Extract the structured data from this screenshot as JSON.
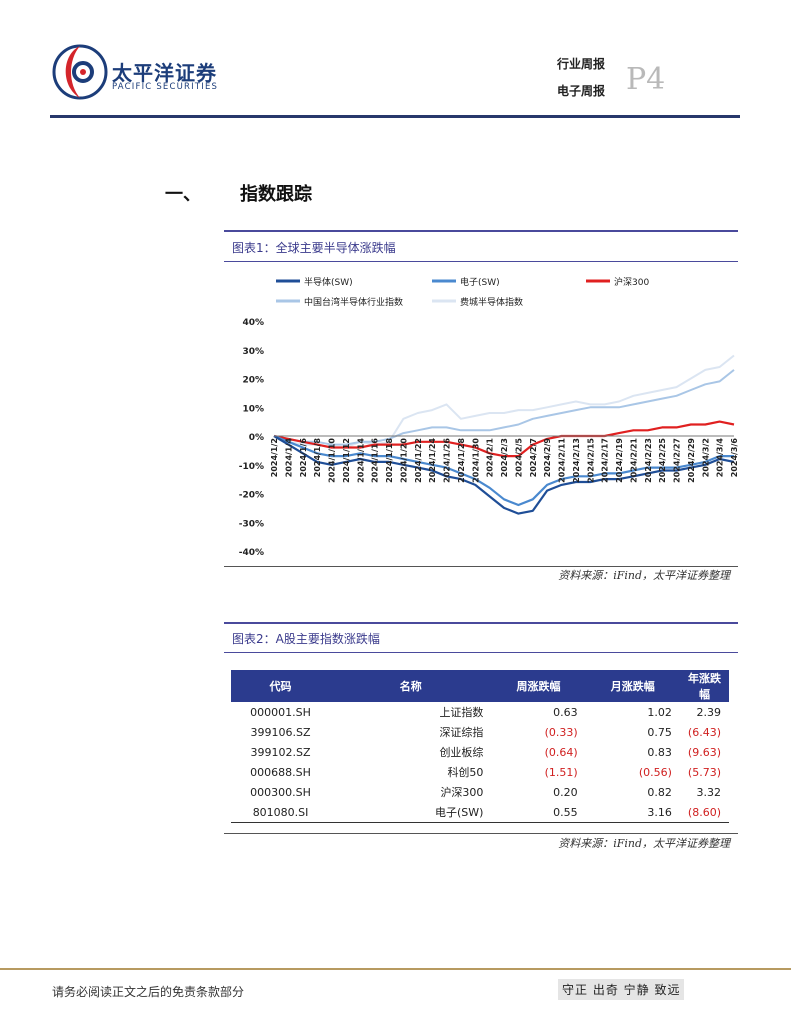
{
  "header": {
    "company_cn": "太平洋证券",
    "company_en": "PACIFIC SECURITIES",
    "report_type": "行业周报",
    "report_sub": "电子周报",
    "page_number": "P4",
    "brand_color": "#1c3d7a",
    "accent_color": "#d4252b"
  },
  "section": {
    "number": "一、",
    "title": "指数跟踪"
  },
  "figure1": {
    "title": "图表1：全球主要半导体涨跌幅",
    "source": "资料来源：iFind，太平洋证券整理"
  },
  "figure2": {
    "title": "图表2：A股主要指数涨跌幅",
    "source": "资料来源：iFind，太平洋证券整理"
  },
  "table": {
    "headers": [
      "代码",
      "名称",
      "周涨跌幅",
      "月涨跌幅",
      "年涨跌幅"
    ],
    "rows": [
      [
        "000001.SH",
        "上证指数",
        "0.63",
        "1.02",
        "2.39"
      ],
      [
        "399106.SZ",
        "深证综指",
        "(0.33)",
        "0.75",
        "(6.43)"
      ],
      [
        "399102.SZ",
        "创业板综",
        "(0.64)",
        "0.83",
        "(9.63)"
      ],
      [
        "000688.SH",
        "科创50",
        "(1.51)",
        "(0.56)",
        "(5.73)"
      ],
      [
        "000300.SH",
        "沪深300",
        "0.20",
        "0.82",
        "3.32"
      ],
      [
        "801080.SI",
        "电子(SW)",
        "0.55",
        "3.16",
        "(8.60)"
      ]
    ],
    "header_color": "#2b3b8e",
    "negative_color": "#d02020"
  },
  "chart_data": {
    "type": "line",
    "title": "",
    "xlabel": "",
    "ylabel": "",
    "y_tick_labels": [
      "40%",
      "30%",
      "20%",
      "10%",
      "0%",
      "-10%",
      "-20%",
      "-30%",
      "-40%"
    ],
    "ylim": [
      -40,
      40
    ],
    "x_tick_labels": [
      "2024/1/2",
      "2024/1/4",
      "2024/1/6",
      "2024/1/8",
      "2024/1/10",
      "2024/1/12",
      "2024/1/14",
      "2024/1/16",
      "2024/1/18",
      "2024/1/20",
      "2024/1/22",
      "2024/1/24",
      "2024/1/26",
      "2024/1/28",
      "2024/1/30",
      "2024/2/1",
      "2024/2/3",
      "2024/2/5",
      "2024/2/7",
      "2024/2/9",
      "2024/2/11",
      "2024/2/13",
      "2024/2/15",
      "2024/2/17",
      "2024/2/19",
      "2024/2/21",
      "2024/2/23",
      "2024/2/25",
      "2024/2/27",
      "2024/2/29",
      "2024/3/2",
      "2024/3/4",
      "2024/3/6"
    ],
    "legend_position": "top",
    "grid": false,
    "series": [
      {
        "name": "半导体(SW)",
        "color": "#1f4e97",
        "width": 2.2,
        "values": [
          0,
          -3,
          -6,
          -9,
          -10,
          -9,
          -8,
          -9,
          -9,
          -10,
          -11,
          -12,
          -14,
          -15,
          -17,
          -21,
          -25,
          -27,
          -26,
          -19,
          -17,
          -16,
          -16,
          -15,
          -15,
          -14,
          -13,
          -12,
          -12,
          -11,
          -10,
          -8,
          -9
        ]
      },
      {
        "name": "电子(SW)",
        "color": "#4a89cf",
        "width": 2.2,
        "values": [
          0,
          -2,
          -4,
          -6,
          -7,
          -7,
          -6,
          -7,
          -7,
          -8,
          -9,
          -10,
          -11,
          -13,
          -15,
          -18,
          -22,
          -24,
          -22,
          -17,
          -15,
          -14,
          -14,
          -13,
          -13,
          -12,
          -11,
          -11,
          -11,
          -10,
          -9,
          -7,
          -7
        ]
      },
      {
        "name": "沪深300",
        "color": "#e02020",
        "width": 2.2,
        "values": [
          0,
          -1,
          -2,
          -3,
          -4,
          -4,
          -4,
          -3,
          -3,
          -3,
          -2,
          -2,
          -2,
          -3,
          -4,
          -6,
          -7,
          -7,
          -3,
          -1,
          0,
          0,
          0,
          0,
          1,
          2,
          2,
          3,
          3,
          4,
          4,
          5,
          4
        ]
      },
      {
        "name": "中国台湾半导体行业指数",
        "color": "#a9c6e6",
        "width": 2,
        "values": [
          0,
          -1,
          -2,
          -2,
          -3,
          -3,
          -2,
          -2,
          -1,
          1,
          2,
          3,
          3,
          2,
          2,
          2,
          3,
          4,
          6,
          7,
          8,
          9,
          10,
          10,
          10,
          11,
          12,
          13,
          14,
          16,
          18,
          19,
          23
        ]
      },
      {
        "name": "费城半导体指数",
        "color": "#dbe5f2",
        "width": 2,
        "values": [
          0,
          -2,
          -3,
          -3,
          -4,
          -4,
          -2,
          -3,
          -2,
          6,
          8,
          9,
          11,
          6,
          7,
          8,
          8,
          9,
          9,
          10,
          11,
          12,
          11,
          11,
          12,
          14,
          15,
          16,
          17,
          20,
          23,
          24,
          28
        ]
      }
    ]
  }
}
